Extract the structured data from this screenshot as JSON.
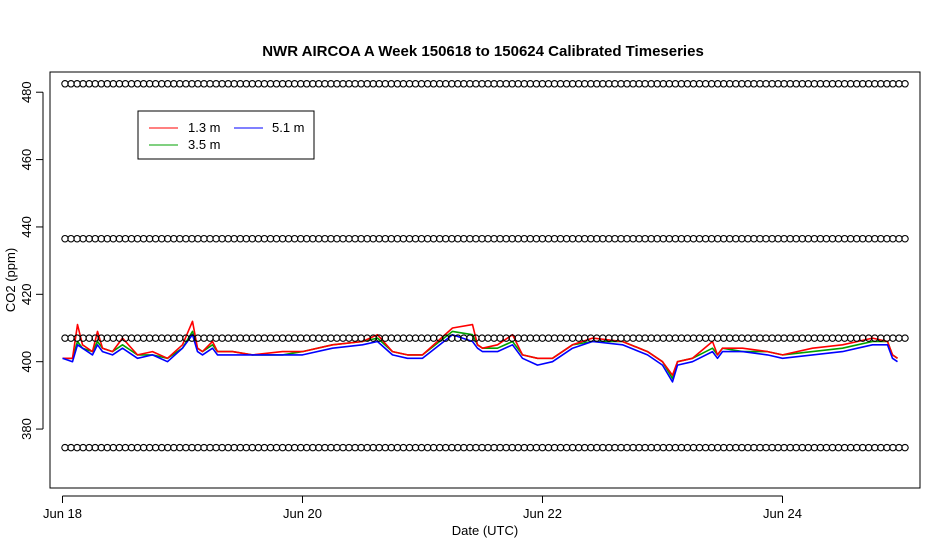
{
  "chart_data": {
    "type": "line",
    "title": "NWR AIRCOA A  Week 150618 to 150624  Calibrated Timeseries",
    "xlabel": "Date (UTC)",
    "ylabel": "CO2 (ppm)",
    "xlim": [
      "2015-06-17T21:30",
      "2015-06-25T03:30"
    ],
    "ylim": [
      362.5,
      486
    ],
    "x_ticks": [
      {
        "label": "Jun 18",
        "x": "2015-06-18T00:00"
      },
      {
        "label": "Jun 20",
        "x": "2015-06-20T00:00"
      },
      {
        "label": "Jun 22",
        "x": "2015-06-22T00:00"
      },
      {
        "label": "Jun 24",
        "x": "2015-06-24T00:00"
      }
    ],
    "y_ticks": [
      380,
      400,
      420,
      440,
      460,
      480
    ],
    "legend": {
      "position": "top-left"
    },
    "series": [
      {
        "name": "1.3 m",
        "color": "#ff0000",
        "x": [
          "2015-06-18T00:00",
          "2015-06-18T02:00",
          "2015-06-18T03:00",
          "2015-06-18T04:00",
          "2015-06-18T06:00",
          "2015-06-18T07:00",
          "2015-06-18T08:00",
          "2015-06-18T10:00",
          "2015-06-18T12:00",
          "2015-06-18T15:00",
          "2015-06-18T18:00",
          "2015-06-18T21:00",
          "2015-06-19T00:00",
          "2015-06-19T02:00",
          "2015-06-19T03:00",
          "2015-06-19T04:00",
          "2015-06-19T06:00",
          "2015-06-19T07:00",
          "2015-06-19T10:00",
          "2015-06-19T14:00",
          "2015-06-19T20:00",
          "2015-06-20T00:00",
          "2015-06-20T06:00",
          "2015-06-20T12:00",
          "2015-06-20T15:00",
          "2015-06-20T18:00",
          "2015-06-20T21:00",
          "2015-06-21T00:00",
          "2015-06-21T06:00",
          "2015-06-21T10:00",
          "2015-06-21T11:00",
          "2015-06-21T12:00",
          "2015-06-21T15:00",
          "2015-06-21T18:00",
          "2015-06-21T20:00",
          "2015-06-21T23:00",
          "2015-06-22T02:00",
          "2015-06-22T06:00",
          "2015-06-22T10:00",
          "2015-06-22T16:00",
          "2015-06-22T21:00",
          "2015-06-23T00:00",
          "2015-06-23T02:00",
          "2015-06-23T03:00",
          "2015-06-23T06:00",
          "2015-06-23T10:00",
          "2015-06-23T11:00",
          "2015-06-23T12:00",
          "2015-06-23T16:00",
          "2015-06-23T21:00",
          "2015-06-24T00:00",
          "2015-06-24T06:00",
          "2015-06-24T12:00",
          "2015-06-24T15:00",
          "2015-06-24T18:00",
          "2015-06-24T21:00",
          "2015-06-24T22:00",
          "2015-06-24T23:00"
        ],
        "values": [
          401,
          401,
          411,
          405,
          403,
          409,
          404,
          403,
          407,
          402,
          403,
          401,
          405,
          412,
          404,
          403,
          406,
          403,
          403,
          402,
          403,
          403,
          405,
          406,
          408,
          403,
          402,
          402,
          410,
          411,
          405,
          404,
          405,
          408,
          402,
          401,
          401,
          405,
          407,
          406,
          403,
          400,
          396,
          400,
          401,
          406,
          402,
          404,
          404,
          403,
          402,
          404,
          405,
          406,
          407,
          406,
          402,
          401
        ]
      },
      {
        "name": "3.5 m",
        "color": "#00a000",
        "x": [
          "2015-06-18T00:00",
          "2015-06-18T02:00",
          "2015-06-18T03:00",
          "2015-06-18T04:00",
          "2015-06-18T06:00",
          "2015-06-18T07:00",
          "2015-06-18T08:00",
          "2015-06-18T10:00",
          "2015-06-18T12:00",
          "2015-06-18T15:00",
          "2015-06-18T18:00",
          "2015-06-18T21:00",
          "2015-06-19T00:00",
          "2015-06-19T02:00",
          "2015-06-19T03:00",
          "2015-06-19T04:00",
          "2015-06-19T06:00",
          "2015-06-19T07:00",
          "2015-06-19T10:00",
          "2015-06-19T14:00",
          "2015-06-19T20:00",
          "2015-06-20T00:00",
          "2015-06-20T06:00",
          "2015-06-20T12:00",
          "2015-06-20T15:00",
          "2015-06-20T18:00",
          "2015-06-20T21:00",
          "2015-06-21T00:00",
          "2015-06-21T06:00",
          "2015-06-21T10:00",
          "2015-06-21T11:00",
          "2015-06-21T12:00",
          "2015-06-21T15:00",
          "2015-06-21T18:00",
          "2015-06-21T20:00",
          "2015-06-21T23:00",
          "2015-06-22T02:00",
          "2015-06-22T06:00",
          "2015-06-22T10:00",
          "2015-06-22T16:00",
          "2015-06-22T21:00",
          "2015-06-23T00:00",
          "2015-06-23T02:00",
          "2015-06-23T03:00",
          "2015-06-23T06:00",
          "2015-06-23T10:00",
          "2015-06-23T11:00",
          "2015-06-23T12:00",
          "2015-06-23T16:00",
          "2015-06-23T21:00",
          "2015-06-24T00:00",
          "2015-06-24T06:00",
          "2015-06-24T12:00",
          "2015-06-24T15:00",
          "2015-06-24T18:00",
          "2015-06-24T21:00",
          "2015-06-24T22:00",
          "2015-06-24T23:00"
        ],
        "values": [
          401,
          401,
          406,
          404,
          403,
          406,
          404,
          403,
          405,
          402,
          402,
          401,
          404,
          409,
          404,
          403,
          405,
          403,
          403,
          402,
          402,
          403,
          405,
          406,
          407,
          403,
          402,
          402,
          409,
          408,
          405,
          404,
          404,
          406,
          402,
          401,
          401,
          405,
          406,
          406,
          403,
          400,
          395,
          400,
          401,
          404,
          402,
          404,
          403,
          403,
          402,
          403,
          404,
          405,
          406,
          406,
          402,
          401
        ]
      },
      {
        "name": "5.1 m",
        "color": "#0000ff",
        "x": [
          "2015-06-18T00:00",
          "2015-06-18T02:00",
          "2015-06-18T03:00",
          "2015-06-18T04:00",
          "2015-06-18T06:00",
          "2015-06-18T07:00",
          "2015-06-18T08:00",
          "2015-06-18T10:00",
          "2015-06-18T12:00",
          "2015-06-18T15:00",
          "2015-06-18T18:00",
          "2015-06-18T21:00",
          "2015-06-19T00:00",
          "2015-06-19T02:00",
          "2015-06-19T03:00",
          "2015-06-19T04:00",
          "2015-06-19T06:00",
          "2015-06-19T07:00",
          "2015-06-19T10:00",
          "2015-06-19T14:00",
          "2015-06-19T20:00",
          "2015-06-20T00:00",
          "2015-06-20T06:00",
          "2015-06-20T12:00",
          "2015-06-20T15:00",
          "2015-06-20T18:00",
          "2015-06-20T21:00",
          "2015-06-21T00:00",
          "2015-06-21T06:00",
          "2015-06-21T10:00",
          "2015-06-21T11:00",
          "2015-06-21T12:00",
          "2015-06-21T15:00",
          "2015-06-21T18:00",
          "2015-06-21T20:00",
          "2015-06-21T23:00",
          "2015-06-22T02:00",
          "2015-06-22T06:00",
          "2015-06-22T10:00",
          "2015-06-22T16:00",
          "2015-06-22T21:00",
          "2015-06-23T00:00",
          "2015-06-23T02:00",
          "2015-06-23T03:00",
          "2015-06-23T06:00",
          "2015-06-23T10:00",
          "2015-06-23T11:00",
          "2015-06-23T12:00",
          "2015-06-23T16:00",
          "2015-06-23T21:00",
          "2015-06-24T00:00",
          "2015-06-24T06:00",
          "2015-06-24T12:00",
          "2015-06-24T15:00",
          "2015-06-24T18:00",
          "2015-06-24T21:00",
          "2015-06-24T22:00",
          "2015-06-24T23:00"
        ],
        "values": [
          401,
          400,
          405,
          404,
          402,
          405,
          403,
          402,
          404,
          401,
          402,
          400,
          404,
          408,
          403,
          402,
          404,
          402,
          402,
          402,
          402,
          402,
          404,
          405,
          406,
          402,
          401,
          401,
          408,
          406,
          404,
          403,
          403,
          405,
          401,
          399,
          400,
          404,
          406,
          405,
          402,
          399,
          394,
          399,
          400,
          403,
          401,
          403,
          403,
          402,
          401,
          402,
          403,
          404,
          405,
          405,
          401,
          400
        ]
      },
      {
        "name": "",
        "color": "#000000",
        "marker": "circle",
        "x_start": "2015-06-18T00:30",
        "x_end": "2015-06-25T00:30",
        "samples": 140,
        "levels": [
          374.5,
          407,
          436.5,
          482.5
        ]
      }
    ],
    "legend_entries": [
      "1.3 m",
      "3.5 m",
      "5.1 m"
    ]
  }
}
